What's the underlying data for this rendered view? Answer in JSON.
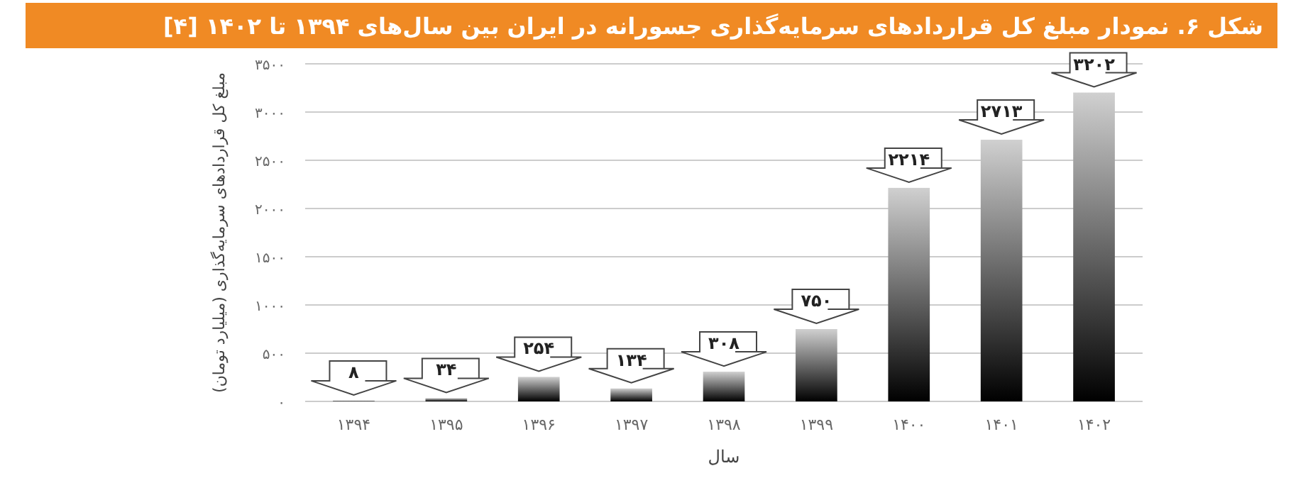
{
  "chart_data": {
    "type": "bar",
    "title": "شکل ۶. نمودار مبلغ کل قراردادهای سرمایه‌گذاری جسورانه در ایران بین سال‌های ۱۳۹۴ تا ۱۴۰۲ [۴]",
    "xlabel": "سال",
    "ylabel": "مبلغ کل قراردادهای سرمایه‌گذاری (میلیارد تومان)",
    "categories": [
      "۱۳۹۴",
      "۱۳۹۵",
      "۱۳۹۶",
      "۱۳۹۷",
      "۱۳۹۸",
      "۱۳۹۹",
      "۱۴۰۰",
      "۱۴۰۱",
      "۱۴۰۲"
    ],
    "values": [
      8,
      34,
      254,
      134,
      308,
      750,
      2214,
      2713,
      3202
    ],
    "value_labels": [
      "۸",
      "۳۴",
      "۲۵۴",
      "۱۳۴",
      "۳۰۸",
      "۷۵۰",
      "۲۲۱۴",
      "۲۷۱۳",
      "۳۲۰۲"
    ],
    "color": "#000000",
    "ylim": [
      0,
      3500
    ],
    "yticks": [
      {
        "value": 0,
        "label": "۰"
      },
      {
        "value": 500,
        "label": "۵۰۰"
      },
      {
        "value": 1000,
        "label": "۱۰۰۰"
      },
      {
        "value": 1500,
        "label": "۱۵۰۰"
      },
      {
        "value": 2000,
        "label": "۲۰۰۰"
      },
      {
        "value": 2500,
        "label": "۲۵۰۰"
      },
      {
        "value": 3000,
        "label": "۳۰۰۰"
      },
      {
        "value": 3500,
        "label": "۳۵۰۰"
      }
    ],
    "grid": "y"
  }
}
